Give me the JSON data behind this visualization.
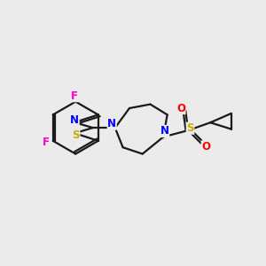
{
  "background_color": "#ebebeb",
  "bond_color": "#1a1a1a",
  "atom_colors": {
    "N": "#0000ff",
    "S": "#ccaa00",
    "F": "#ff00cc",
    "O": "#ff0000",
    "C": "#1a1a1a"
  },
  "figsize": [
    3.0,
    3.0
  ],
  "dpi": 100
}
